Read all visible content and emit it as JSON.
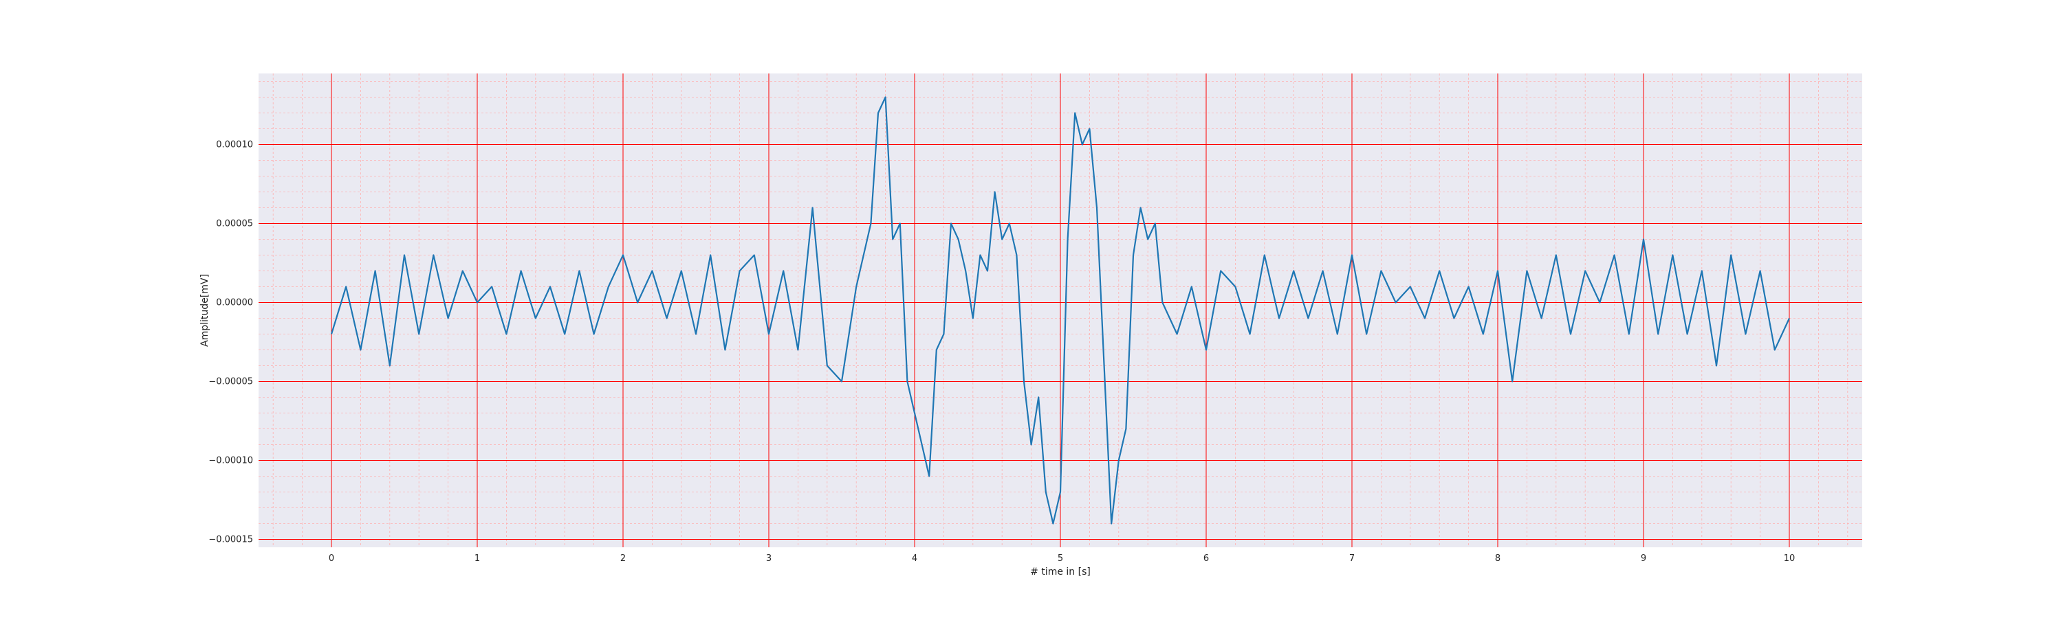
{
  "chart_data": {
    "type": "line",
    "title": "",
    "xlabel": "# time in [s]",
    "ylabel": "Amplitude[mV]",
    "xlim": [
      -0.5,
      10.5
    ],
    "ylim": [
      -0.000155,
      0.000145
    ],
    "x_ticks": [
      0,
      1,
      2,
      3,
      4,
      5,
      6,
      7,
      8,
      9,
      10
    ],
    "x_tick_labels": [
      "0",
      "1",
      "2",
      "3",
      "4",
      "5",
      "6",
      "7",
      "8",
      "9",
      "10"
    ],
    "y_ticks": [
      -0.00015,
      -0.0001,
      -5e-05,
      0.0,
      5e-05,
      0.0001
    ],
    "y_tick_labels": [
      "−0.00015",
      "−0.00010",
      "−0.00005",
      "0.00000",
      "0.00005",
      "0.00010"
    ],
    "grid": {
      "major": true,
      "minor": true,
      "major_color": "#ff0000",
      "minor_color": "#ffb0b0"
    },
    "background_color": "#eaeaf2",
    "line_color": "#1f77b4",
    "legend": "none",
    "series": [
      {
        "x": [
          0.0,
          0.1,
          0.2,
          0.3,
          0.4,
          0.5,
          0.6,
          0.7,
          0.8,
          0.9,
          1.0,
          1.1,
          1.2,
          1.3,
          1.4,
          1.5,
          1.6,
          1.7,
          1.8,
          1.9,
          2.0,
          2.1,
          2.2,
          2.3,
          2.4,
          2.5,
          2.6,
          2.7,
          2.8,
          2.9,
          3.0,
          3.1,
          3.2,
          3.3,
          3.4,
          3.5,
          3.6,
          3.7,
          3.75,
          3.8,
          3.85,
          3.9,
          3.95,
          4.0,
          4.05,
          4.1,
          4.15,
          4.2,
          4.25,
          4.3,
          4.35,
          4.4,
          4.45,
          4.5,
          4.55,
          4.6,
          4.65,
          4.7,
          4.75,
          4.8,
          4.85,
          4.9,
          4.95,
          5.0,
          5.05,
          5.1,
          5.15,
          5.2,
          5.25,
          5.3,
          5.35,
          5.4,
          5.45,
          5.5,
          5.55,
          5.6,
          5.65,
          5.7,
          5.8,
          5.9,
          6.0,
          6.1,
          6.2,
          6.3,
          6.4,
          6.5,
          6.6,
          6.7,
          6.8,
          6.9,
          7.0,
          7.1,
          7.2,
          7.3,
          7.4,
          7.5,
          7.6,
          7.7,
          7.8,
          7.9,
          8.0,
          8.1,
          8.2,
          8.3,
          8.4,
          8.5,
          8.6,
          8.7,
          8.8,
          8.9,
          9.0,
          9.1,
          9.2,
          9.3,
          9.4,
          9.5,
          9.6,
          9.7,
          9.8,
          9.9,
          10.0
        ],
        "y": [
          -2e-05,
          1e-05,
          -3e-05,
          2e-05,
          -4e-05,
          3e-05,
          -2e-05,
          3e-05,
          -1e-05,
          2e-05,
          0.0,
          1e-05,
          -2e-05,
          2e-05,
          -1e-05,
          1e-05,
          -2e-05,
          2e-05,
          -2e-05,
          1e-05,
          3e-05,
          0.0,
          2e-05,
          -1e-05,
          2e-05,
          -2e-05,
          3e-05,
          -3e-05,
          2e-05,
          3e-05,
          -2e-05,
          2e-05,
          -3e-05,
          6e-05,
          -4e-05,
          -5e-05,
          1e-05,
          5e-05,
          0.00012,
          0.00013,
          4e-05,
          5e-05,
          -5e-05,
          -7e-05,
          -9e-05,
          -0.00011,
          -3e-05,
          -2e-05,
          5e-05,
          4e-05,
          2e-05,
          -1e-05,
          3e-05,
          2e-05,
          7e-05,
          4e-05,
          5e-05,
          3e-05,
          -5e-05,
          -9e-05,
          -6e-05,
          -0.00012,
          -0.00014,
          -0.00012,
          4e-05,
          0.00012,
          0.0001,
          0.00011,
          6e-05,
          -4e-05,
          -0.00014,
          -0.0001,
          -8e-05,
          3e-05,
          6e-05,
          4e-05,
          5e-05,
          0.0,
          -2e-05,
          1e-05,
          -3e-05,
          2e-05,
          1e-05,
          -2e-05,
          3e-05,
          -1e-05,
          2e-05,
          -1e-05,
          2e-05,
          -2e-05,
          3e-05,
          -2e-05,
          2e-05,
          0.0,
          1e-05,
          -1e-05,
          2e-05,
          -1e-05,
          1e-05,
          -2e-05,
          2e-05,
          -5e-05,
          2e-05,
          -1e-05,
          3e-05,
          -2e-05,
          2e-05,
          0.0,
          3e-05,
          -2e-05,
          4e-05,
          -2e-05,
          3e-05,
          -2e-05,
          2e-05,
          -4e-05,
          3e-05,
          -2e-05,
          2e-05,
          -3e-05,
          -1e-05
        ]
      }
    ]
  }
}
